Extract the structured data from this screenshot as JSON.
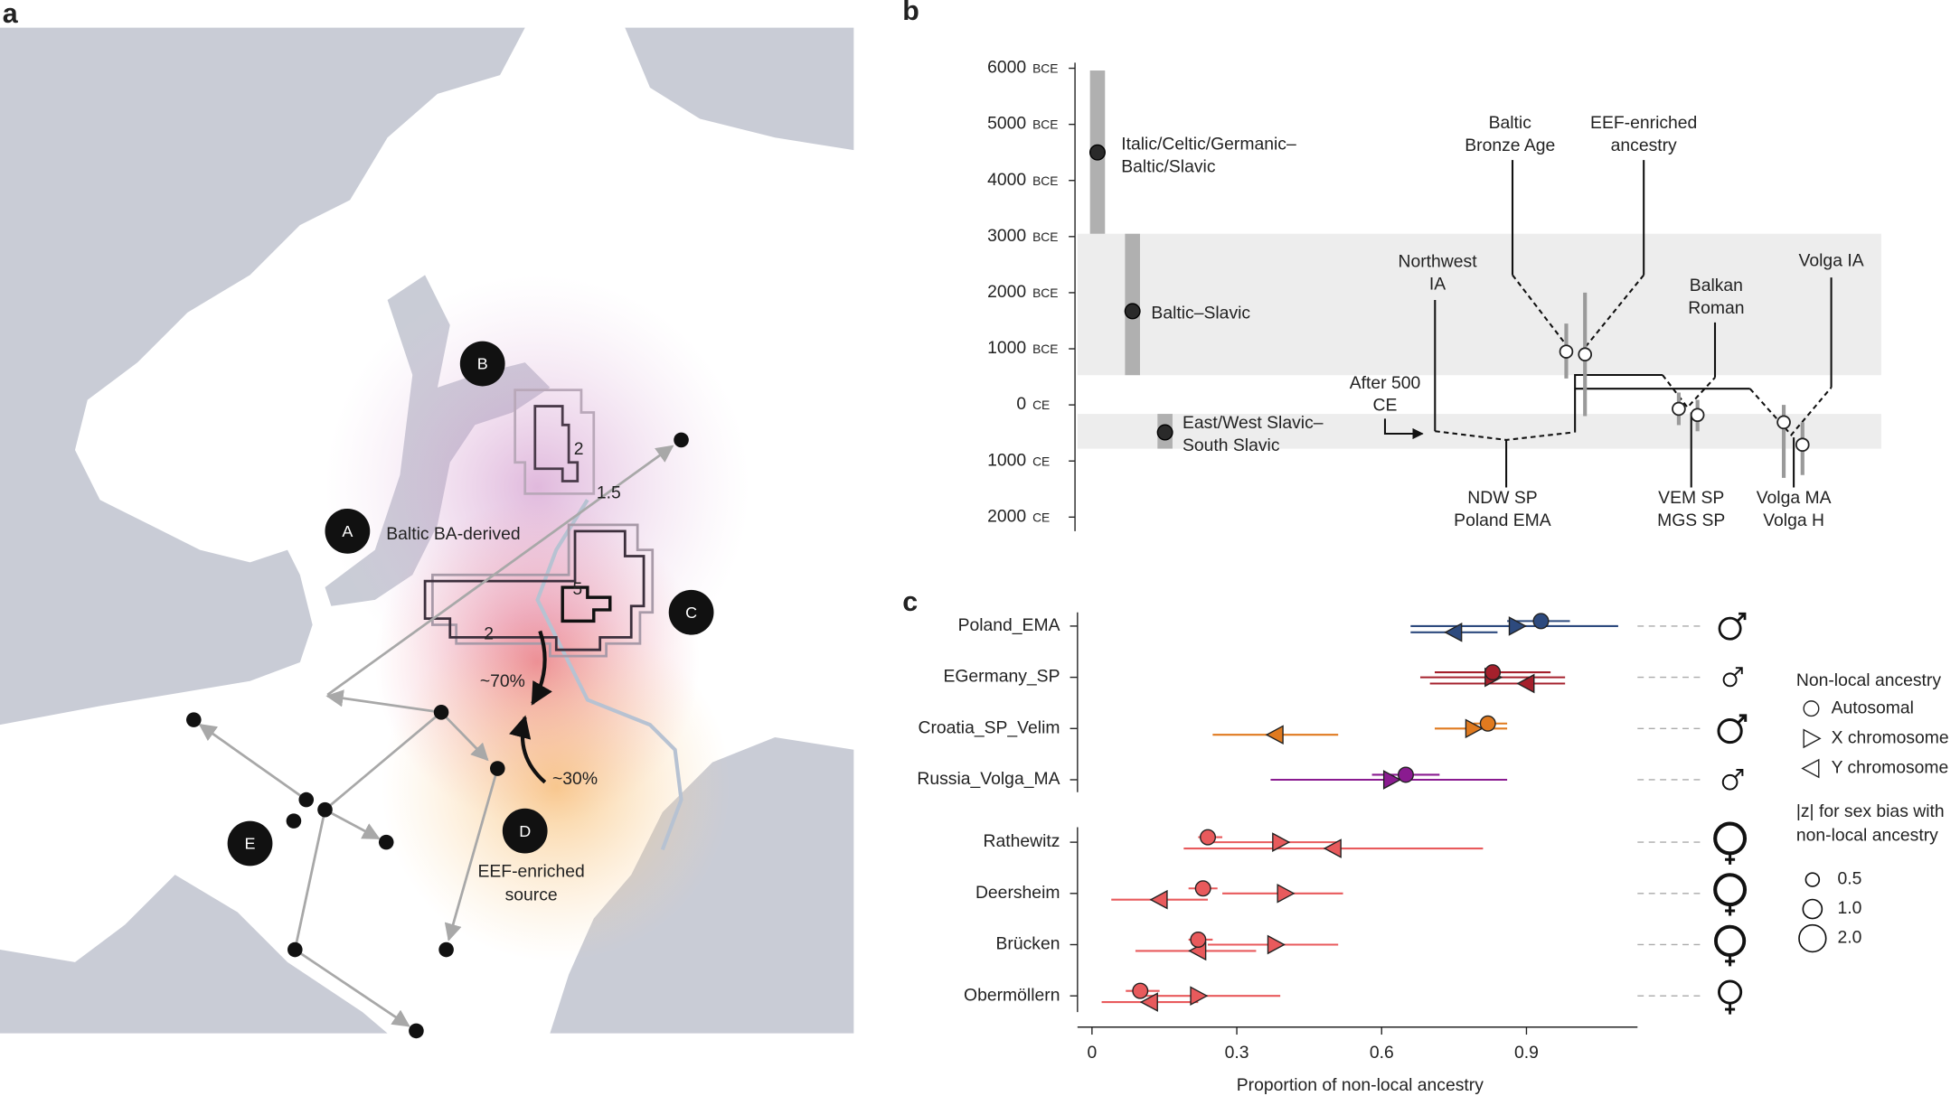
{
  "panel_a": {
    "label": "a",
    "regions": [
      "A",
      "B",
      "C",
      "D",
      "E"
    ],
    "ancestry_label": "Baltic BA-derived",
    "outline_numbers": [
      "2",
      "5",
      "2"
    ],
    "flow_label": "1.5",
    "arrow_labels": [
      "~70%",
      "~30%"
    ],
    "source_label": [
      "EEF-enriched",
      "source"
    ]
  },
  "panel_b": {
    "label": "b",
    "ylim": [
      -6100,
      2250
    ],
    "yticks": [
      {
        "value": -6000,
        "label": "6000",
        "era": "BCE"
      },
      {
        "value": -5000,
        "label": "5000",
        "era": "BCE"
      },
      {
        "value": -4000,
        "label": "4000",
        "era": "BCE"
      },
      {
        "value": -3000,
        "label": "3000",
        "era": "BCE"
      },
      {
        "value": -2000,
        "label": "2000",
        "era": "BCE"
      },
      {
        "value": -1000,
        "label": "1000",
        "era": "BCE"
      },
      {
        "value": 0,
        "label": "0",
        "era": "CE"
      },
      {
        "value": 1000,
        "label": "1000",
        "era": "CE"
      },
      {
        "value": 2000,
        "label": "2000",
        "era": "CE"
      }
    ],
    "bands": [
      [
        -3050,
        -530
      ],
      [
        160,
        780
      ]
    ],
    "divergences": [
      {
        "label": [
          "Italic/Celtic/Germanic–",
          "Baltic/Slavic"
        ],
        "value": -4500,
        "low": -5960,
        "high": -3050
      },
      {
        "label": [
          "Baltic–Slavic"
        ],
        "value": -1670,
        "low": -3050,
        "high": -530
      },
      {
        "label": [
          "East/West Slavic–",
          "South Slavic"
        ],
        "value": 490,
        "low": 160,
        "high": 780
      }
    ],
    "samples": [
      {
        "value": -950,
        "low": -1450,
        "high": -470
      },
      {
        "value": -900,
        "low": -2000,
        "high": 200
      },
      {
        "value": 70,
        "low": -220,
        "high": 360
      },
      {
        "value": 180,
        "low": -90,
        "high": 470
      },
      {
        "value": 310,
        "low": 0,
        "high": 1300
      },
      {
        "value": 710,
        "low": 310,
        "high": 1250
      }
    ],
    "labels": [
      [
        "Baltic",
        "Bronze Age"
      ],
      [
        "EEF-enriched",
        "ancestry"
      ],
      [
        "Northwest",
        "IA"
      ],
      [
        "Balkan",
        "Roman"
      ],
      [
        "Volga IA"
      ],
      [
        "After 500",
        "CE"
      ],
      [
        "NDW SP",
        "Poland EMA"
      ],
      [
        "VEM SP",
        "MGS SP"
      ],
      [
        "Volga MA",
        "Volga H"
      ]
    ]
  },
  "panel_c": {
    "label": "c",
    "type": "dot",
    "xlabel": "Proportion of non-local ancestry",
    "xlim": [
      -0.03,
      1.13
    ],
    "xticks": [
      0,
      0.3,
      0.6,
      0.9
    ],
    "categories": [
      "Poland_EMA",
      "EGermany_SP",
      "Croatia_SP_Velim",
      "Russia_Volga_MA",
      "Rathewitz",
      "Deersheim",
      "Brücken",
      "Obermöllern"
    ],
    "colors": [
      "#2d4a7e",
      "#a5202c",
      "#e07a1f",
      "#8a1b90",
      "#e85a5c",
      "#e85a5c",
      "#e85a5c",
      "#e85a5c"
    ],
    "series": [
      {
        "name": "Autosomal",
        "marker": "circle",
        "values": [
          0.93,
          0.83,
          0.82,
          0.65,
          0.24,
          0.23,
          0.22,
          0.1
        ],
        "low": [
          0.86,
          0.71,
          0.79,
          0.58,
          0.22,
          0.2,
          0.2,
          0.07
        ],
        "high": [
          0.99,
          0.95,
          0.86,
          0.72,
          0.27,
          0.26,
          0.25,
          0.14
        ]
      },
      {
        "name": "X chromosome",
        "marker": "triangle-right",
        "values": [
          0.88,
          0.83,
          0.79,
          0.62,
          0.39,
          0.4,
          0.38,
          0.22
        ],
        "low": [
          0.66,
          0.68,
          0.71,
          0.37,
          0.24,
          0.27,
          0.24,
          0.1
        ],
        "high": [
          1.09,
          0.98,
          0.86,
          0.86,
          0.51,
          0.52,
          0.51,
          0.39
        ]
      },
      {
        "name": "Y chromosome",
        "marker": "triangle-left",
        "values": [
          0.75,
          0.9,
          0.38,
          null,
          0.5,
          0.14,
          0.22,
          0.12
        ],
        "low": [
          0.66,
          0.7,
          0.25,
          null,
          0.19,
          0.04,
          0.09,
          0.02
        ],
        "high": [
          0.84,
          0.98,
          0.51,
          null,
          0.81,
          0.24,
          0.34,
          0.22
        ]
      }
    ],
    "sex": [
      "male",
      "male",
      "male",
      "male",
      "female",
      "female",
      "female",
      "female"
    ],
    "z": [
      1.1,
      0.4,
      1.3,
      0.5,
      2.2,
      2.2,
      2.0,
      1.2
    ],
    "legend_title": "Non-local ancestry",
    "size_title": [
      "|z| for sex bias with",
      "non-local ancestry"
    ],
    "size_legend": [
      0.5,
      {
        "value": 1,
        "label": "1.0"
      },
      {
        "value": 2,
        "label": "2.0"
      }
    ]
  }
}
